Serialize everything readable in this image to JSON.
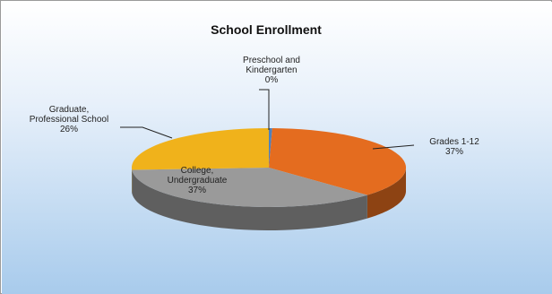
{
  "chart_data": {
    "type": "pie",
    "title": "School Enrollment",
    "slices": [
      {
        "label_lines": [
          "Preschool and",
          "Kindergarten"
        ],
        "percent_label": "0%",
        "value": 0.4,
        "color": "#4f81bd"
      },
      {
        "label_lines": [
          "Grades 1-12"
        ],
        "percent_label": "37%",
        "value": 37,
        "color": "#e46c1f"
      },
      {
        "label_lines": [
          "College,",
          "Undergraduate"
        ],
        "percent_label": "37%",
        "value": 37,
        "color": "#9a9a9a"
      },
      {
        "label_lines": [
          "Graduate,",
          "Professional School"
        ],
        "percent_label": "26%",
        "value": 26,
        "color": "#f0b21b"
      }
    ],
    "legend": "none",
    "style": "3d-pie"
  },
  "colors": {
    "background_top": "#ffffff",
    "background_bottom": "#a8cbec",
    "frame": "#9a9a9a"
  }
}
